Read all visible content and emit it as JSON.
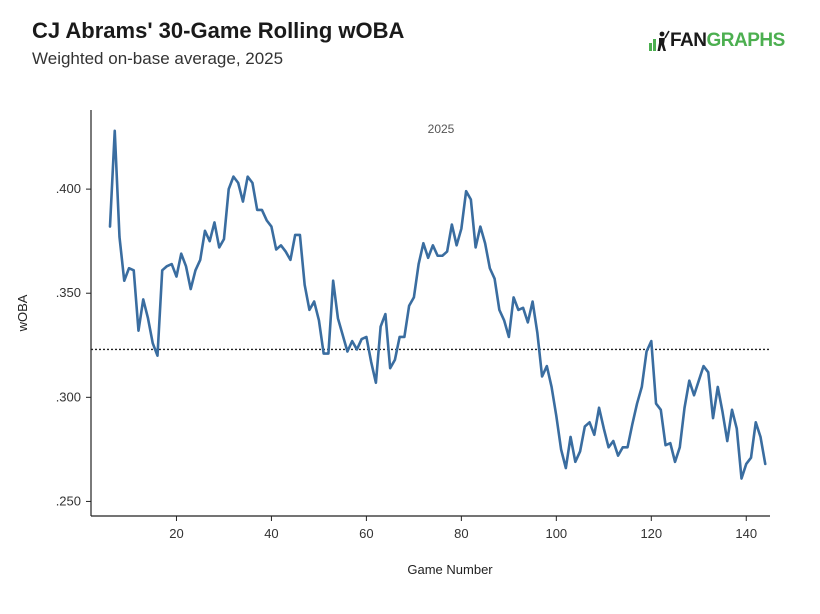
{
  "header": {
    "title": "CJ Abrams' 30-Game Rolling wOBA",
    "subtitle": "Weighted on-base average, 2025"
  },
  "logo": {
    "text_part1": "FAN",
    "text_part2": "GRAPHS",
    "accent_color": "#4caf50"
  },
  "chart_data": {
    "type": "line",
    "title": "CJ Abrams' 30-Game Rolling wOBA",
    "subtitle": "Weighted on-base average, 2025",
    "facet_label": "2025",
    "xlabel": "Game Number",
    "ylabel": "wOBA",
    "xlim": [
      2,
      145
    ],
    "ylim": [
      0.243,
      0.438
    ],
    "x_ticks": [
      20,
      40,
      60,
      80,
      100,
      120,
      140
    ],
    "x_tick_labels": [
      "20",
      "40",
      "60",
      "80",
      "100",
      "120",
      "140"
    ],
    "y_ticks": [
      0.25,
      0.3,
      0.35,
      0.4
    ],
    "y_tick_labels": [
      ".250",
      ".300",
      ".350",
      ".400"
    ],
    "reference_line": {
      "value": 0.323,
      "style": "dotted"
    },
    "line_color": "#3a6da0",
    "series": [
      {
        "name": "CJ Abrams",
        "x": [
          6,
          7,
          8,
          9,
          10,
          11,
          12,
          13,
          14,
          15,
          16,
          17,
          18,
          19,
          20,
          21,
          22,
          23,
          24,
          25,
          26,
          27,
          28,
          29,
          30,
          31,
          32,
          33,
          34,
          35,
          36,
          37,
          38,
          39,
          40,
          41,
          42,
          43,
          44,
          45,
          46,
          47,
          48,
          49,
          50,
          51,
          52,
          53,
          54,
          55,
          56,
          57,
          58,
          59,
          60,
          61,
          62,
          63,
          64,
          65,
          66,
          67,
          68,
          69,
          70,
          71,
          72,
          73,
          74,
          75,
          76,
          77,
          78,
          79,
          80,
          81,
          82,
          83,
          84,
          85,
          86,
          87,
          88,
          89,
          90,
          91,
          92,
          93,
          94,
          95,
          96,
          97,
          98,
          99,
          100,
          101,
          102,
          103,
          104,
          105,
          106,
          107,
          108,
          109,
          110,
          111,
          112,
          113,
          114,
          115,
          116,
          117,
          118,
          119,
          120,
          121,
          122,
          123,
          124,
          125,
          126,
          127,
          128,
          129,
          130,
          131,
          132,
          133,
          134,
          135,
          136,
          137,
          138,
          139,
          140,
          141,
          142,
          143,
          144
        ],
        "values": [
          0.382,
          0.428,
          0.377,
          0.356,
          0.362,
          0.361,
          0.332,
          0.347,
          0.338,
          0.326,
          0.32,
          0.361,
          0.363,
          0.364,
          0.358,
          0.369,
          0.363,
          0.352,
          0.361,
          0.366,
          0.38,
          0.375,
          0.384,
          0.372,
          0.376,
          0.4,
          0.406,
          0.403,
          0.394,
          0.406,
          0.403,
          0.39,
          0.39,
          0.385,
          0.382,
          0.371,
          0.373,
          0.37,
          0.366,
          0.378,
          0.378,
          0.354,
          0.342,
          0.346,
          0.337,
          0.321,
          0.321,
          0.356,
          0.338,
          0.33,
          0.322,
          0.327,
          0.323,
          0.328,
          0.329,
          0.317,
          0.307,
          0.334,
          0.34,
          0.314,
          0.318,
          0.329,
          0.329,
          0.344,
          0.348,
          0.364,
          0.374,
          0.367,
          0.373,
          0.368,
          0.368,
          0.37,
          0.383,
          0.373,
          0.381,
          0.399,
          0.395,
          0.372,
          0.382,
          0.374,
          0.362,
          0.357,
          0.342,
          0.337,
          0.329,
          0.348,
          0.342,
          0.343,
          0.336,
          0.346,
          0.331,
          0.31,
          0.315,
          0.305,
          0.291,
          0.275,
          0.266,
          0.281,
          0.269,
          0.274,
          0.286,
          0.288,
          0.282,
          0.295,
          0.285,
          0.276,
          0.279,
          0.272,
          0.276,
          0.276,
          0.287,
          0.297,
          0.305,
          0.322,
          0.327,
          0.297,
          0.294,
          0.277,
          0.278,
          0.269,
          0.276,
          0.295,
          0.308,
          0.301,
          0.308,
          0.315,
          0.312,
          0.29,
          0.305,
          0.293,
          0.279,
          0.294,
          0.285,
          0.261,
          0.268,
          0.271,
          0.288,
          0.281,
          0.268
        ]
      }
    ]
  }
}
